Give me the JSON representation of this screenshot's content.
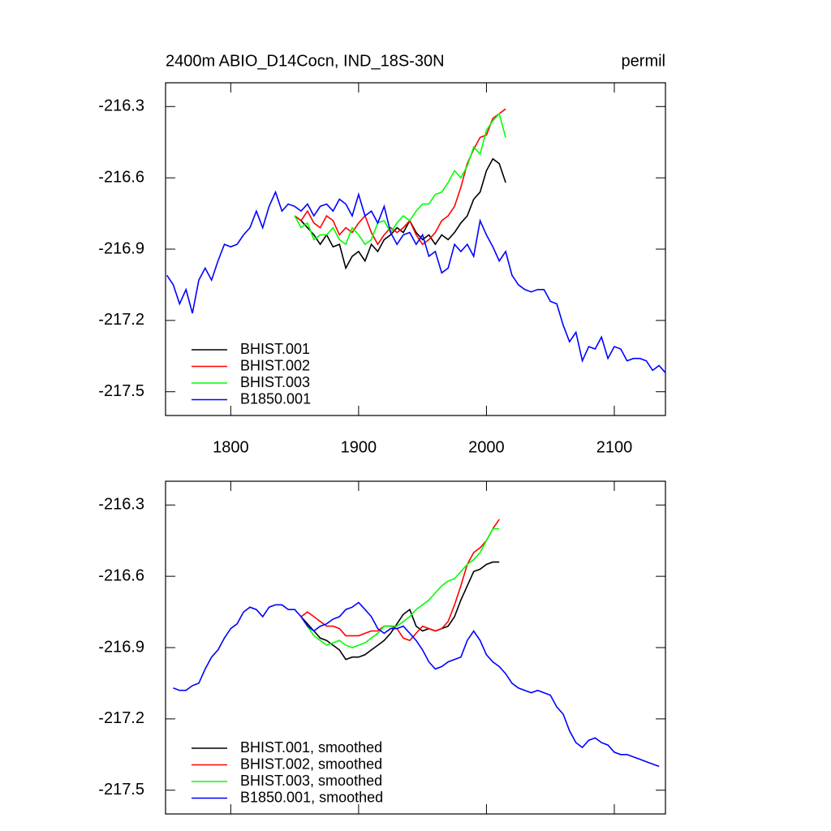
{
  "chart_data": [
    {
      "type": "line",
      "title": "2400m ABIO_D14Cocn, IND_18S-30N",
      "units": "permil",
      "xlim": [
        1749,
        2140
      ],
      "ylim": [
        -217.6,
        -216.2
      ],
      "xticks": [
        1800,
        1900,
        2000,
        2100
      ],
      "yticks": [
        -216.3,
        -216.6,
        -216.9,
        -217.2,
        -217.5
      ],
      "legend": "lower-left",
      "series": [
        {
          "name": "BHIST.001",
          "color": "#000000",
          "x": [
            1850,
            1855,
            1860,
            1865,
            1870,
            1875,
            1880,
            1885,
            1890,
            1895,
            1900,
            1905,
            1910,
            1915,
            1920,
            1925,
            1930,
            1935,
            1940,
            1945,
            1950,
            1955,
            1960,
            1965,
            1970,
            1975,
            1980,
            1985,
            1990,
            1995,
            2000,
            2005,
            2010,
            2015
          ],
          "values": [
            -216.76,
            -216.78,
            -216.81,
            -216.84,
            -216.88,
            -216.84,
            -216.89,
            -216.88,
            -216.98,
            -216.93,
            -216.91,
            -216.95,
            -216.88,
            -216.91,
            -216.86,
            -216.84,
            -216.81,
            -216.83,
            -216.78,
            -216.83,
            -216.86,
            -216.84,
            -216.88,
            -216.84,
            -216.86,
            -216.83,
            -216.79,
            -216.76,
            -216.69,
            -216.66,
            -216.57,
            -216.52,
            -216.54,
            -216.62
          ]
        },
        {
          "name": "BHIST.002",
          "color": "#ff0000",
          "x": [
            1850,
            1855,
            1860,
            1865,
            1870,
            1875,
            1880,
            1885,
            1890,
            1895,
            1900,
            1905,
            1910,
            1915,
            1920,
            1925,
            1930,
            1935,
            1940,
            1945,
            1950,
            1955,
            1960,
            1965,
            1970,
            1975,
            1980,
            1985,
            1990,
            1995,
            2000,
            2005,
            2010,
            2015
          ],
          "values": [
            -216.76,
            -216.78,
            -216.74,
            -216.79,
            -216.81,
            -216.76,
            -216.78,
            -216.84,
            -216.81,
            -216.83,
            -216.79,
            -216.76,
            -216.83,
            -216.88,
            -216.84,
            -216.81,
            -216.83,
            -216.81,
            -216.78,
            -216.84,
            -216.88,
            -216.86,
            -216.83,
            -216.78,
            -216.76,
            -216.72,
            -216.64,
            -216.54,
            -216.48,
            -216.43,
            -216.42,
            -216.35,
            -216.33,
            -216.31
          ]
        },
        {
          "name": "BHIST.003",
          "color": "#00ff00",
          "x": [
            1850,
            1855,
            1860,
            1865,
            1870,
            1875,
            1880,
            1885,
            1890,
            1895,
            1900,
            1905,
            1910,
            1915,
            1920,
            1925,
            1930,
            1935,
            1940,
            1945,
            1950,
            1955,
            1960,
            1965,
            1970,
            1975,
            1980,
            1985,
            1990,
            1995,
            2000,
            2005,
            2010,
            2015
          ],
          "values": [
            -216.76,
            -216.81,
            -216.79,
            -216.86,
            -216.84,
            -216.84,
            -216.81,
            -216.86,
            -216.88,
            -216.81,
            -216.84,
            -216.88,
            -216.86,
            -216.79,
            -216.78,
            -216.83,
            -216.79,
            -216.76,
            -216.78,
            -216.74,
            -216.71,
            -216.71,
            -216.67,
            -216.66,
            -216.62,
            -216.57,
            -216.6,
            -216.55,
            -216.47,
            -216.5,
            -216.4,
            -216.36,
            -216.33,
            -216.43
          ]
        },
        {
          "name": "B1850.001",
          "color": "#0000ff",
          "x": [
            1750,
            1755,
            1760,
            1765,
            1770,
            1775,
            1780,
            1785,
            1790,
            1795,
            1800,
            1805,
            1810,
            1815,
            1820,
            1825,
            1830,
            1835,
            1840,
            1845,
            1850,
            1855,
            1860,
            1865,
            1870,
            1875,
            1880,
            1885,
            1890,
            1895,
            1900,
            1905,
            1910,
            1915,
            1920,
            1925,
            1930,
            1935,
            1940,
            1945,
            1950,
            1955,
            1960,
            1965,
            1970,
            1975,
            1980,
            1985,
            1990,
            1995,
            2000,
            2005,
            2010,
            2015,
            2020,
            2025,
            2030,
            2035,
            2040,
            2045,
            2050,
            2055,
            2060,
            2065,
            2070,
            2075,
            2080,
            2085,
            2090,
            2095,
            2100,
            2105,
            2110,
            2115,
            2120,
            2125,
            2130,
            2135,
            2140
          ],
          "values": [
            -217.01,
            -217.05,
            -217.13,
            -217.07,
            -217.17,
            -217.03,
            -216.98,
            -217.03,
            -216.95,
            -216.88,
            -216.89,
            -216.88,
            -216.84,
            -216.81,
            -216.74,
            -216.81,
            -216.72,
            -216.66,
            -216.74,
            -216.71,
            -216.72,
            -216.74,
            -216.71,
            -216.76,
            -216.72,
            -216.71,
            -216.74,
            -216.69,
            -216.71,
            -216.76,
            -216.67,
            -216.76,
            -216.74,
            -216.79,
            -216.72,
            -216.83,
            -216.88,
            -216.84,
            -216.83,
            -216.88,
            -216.84,
            -216.93,
            -216.91,
            -217.0,
            -216.98,
            -216.88,
            -216.91,
            -216.88,
            -216.93,
            -216.78,
            -216.84,
            -216.89,
            -216.95,
            -216.91,
            -217.01,
            -217.05,
            -217.07,
            -217.08,
            -217.07,
            -217.07,
            -217.12,
            -217.13,
            -217.22,
            -217.29,
            -217.25,
            -217.37,
            -217.31,
            -217.32,
            -217.27,
            -217.36,
            -217.31,
            -217.32,
            -217.37,
            -217.36,
            -217.36,
            -217.37,
            -217.41,
            -217.39,
            -217.42
          ]
        }
      ]
    },
    {
      "type": "line",
      "xlim": [
        1749,
        2140
      ],
      "ylim": [
        -217.6,
        -216.2
      ],
      "yticks": [
        -216.3,
        -216.6,
        -216.9,
        -217.2,
        -217.5
      ],
      "legend": "lower-left",
      "series": [
        {
          "name": "BHIST.001, smoothed",
          "color": "#000000",
          "x": [
            1855,
            1860,
            1865,
            1870,
            1875,
            1880,
            1885,
            1890,
            1895,
            1900,
            1905,
            1910,
            1915,
            1920,
            1925,
            1930,
            1935,
            1940,
            1945,
            1950,
            1955,
            1960,
            1965,
            1970,
            1975,
            1980,
            1985,
            1990,
            1995,
            2000,
            2005,
            2010
          ],
          "values": [
            -216.77,
            -216.8,
            -216.83,
            -216.86,
            -216.87,
            -216.89,
            -216.91,
            -216.95,
            -216.94,
            -216.94,
            -216.93,
            -216.91,
            -216.89,
            -216.87,
            -216.84,
            -216.8,
            -216.76,
            -216.74,
            -216.81,
            -216.83,
            -216.82,
            -216.83,
            -216.82,
            -216.81,
            -216.77,
            -216.7,
            -216.64,
            -216.58,
            -216.57,
            -216.55,
            -216.54,
            -216.54
          ]
        },
        {
          "name": "BHIST.002, smoothed",
          "color": "#ff0000",
          "x": [
            1855,
            1860,
            1865,
            1870,
            1875,
            1880,
            1885,
            1890,
            1895,
            1900,
            1905,
            1910,
            1915,
            1920,
            1925,
            1930,
            1935,
            1940,
            1945,
            1950,
            1955,
            1960,
            1965,
            1970,
            1975,
            1980,
            1985,
            1990,
            1995,
            2000,
            2005,
            2010
          ],
          "values": [
            -216.77,
            -216.75,
            -216.77,
            -216.79,
            -216.81,
            -216.81,
            -216.82,
            -216.85,
            -216.85,
            -216.85,
            -216.84,
            -216.83,
            -216.83,
            -216.81,
            -216.81,
            -216.82,
            -216.86,
            -216.87,
            -216.84,
            -216.81,
            -216.82,
            -216.83,
            -216.82,
            -216.79,
            -216.72,
            -216.64,
            -216.55,
            -216.5,
            -216.48,
            -216.45,
            -216.4,
            -216.36
          ]
        },
        {
          "name": "BHIST.003, smoothed",
          "color": "#00ff00",
          "x": [
            1855,
            1860,
            1865,
            1870,
            1875,
            1880,
            1885,
            1890,
            1895,
            1900,
            1905,
            1910,
            1915,
            1920,
            1925,
            1930,
            1935,
            1940,
            1945,
            1950,
            1955,
            1960,
            1965,
            1970,
            1975,
            1980,
            1985,
            1990,
            1995,
            2000,
            2005,
            2010
          ],
          "values": [
            -216.77,
            -216.81,
            -216.85,
            -216.87,
            -216.89,
            -216.88,
            -216.87,
            -216.89,
            -216.9,
            -216.89,
            -216.88,
            -216.86,
            -216.84,
            -216.81,
            -216.81,
            -216.81,
            -216.79,
            -216.77,
            -216.74,
            -216.72,
            -216.7,
            -216.67,
            -216.64,
            -216.62,
            -216.61,
            -216.58,
            -216.55,
            -216.53,
            -216.5,
            -216.45,
            -216.4,
            -216.4
          ]
        },
        {
          "name": "B1850.001, smoothed",
          "color": "#0000ff",
          "x": [
            1755,
            1760,
            1765,
            1770,
            1775,
            1780,
            1785,
            1790,
            1795,
            1800,
            1805,
            1810,
            1815,
            1820,
            1825,
            1830,
            1835,
            1840,
            1845,
            1850,
            1855,
            1860,
            1865,
            1870,
            1875,
            1880,
            1885,
            1890,
            1895,
            1900,
            1905,
            1910,
            1915,
            1920,
            1925,
            1930,
            1935,
            1940,
            1945,
            1950,
            1955,
            1960,
            1965,
            1970,
            1975,
            1980,
            1985,
            1990,
            1995,
            2000,
            2005,
            2010,
            2015,
            2020,
            2025,
            2030,
            2035,
            2040,
            2045,
            2050,
            2055,
            2060,
            2065,
            2070,
            2075,
            2080,
            2085,
            2090,
            2095,
            2100,
            2105,
            2110,
            2115,
            2120,
            2125,
            2130,
            2135
          ],
          "values": [
            -217.07,
            -217.08,
            -217.08,
            -217.06,
            -217.05,
            -216.99,
            -216.94,
            -216.91,
            -216.86,
            -216.82,
            -216.8,
            -216.75,
            -216.73,
            -216.74,
            -216.77,
            -216.73,
            -216.72,
            -216.72,
            -216.74,
            -216.74,
            -216.77,
            -216.81,
            -216.83,
            -216.81,
            -216.8,
            -216.78,
            -216.77,
            -216.74,
            -216.73,
            -216.71,
            -216.74,
            -216.77,
            -216.82,
            -216.84,
            -216.82,
            -216.82,
            -216.81,
            -216.84,
            -216.87,
            -216.91,
            -216.96,
            -216.99,
            -216.98,
            -216.96,
            -216.95,
            -216.94,
            -216.87,
            -216.83,
            -216.87,
            -216.93,
            -216.96,
            -216.98,
            -217.01,
            -217.05,
            -217.07,
            -217.08,
            -217.09,
            -217.08,
            -217.09,
            -217.1,
            -217.15,
            -217.18,
            -217.25,
            -217.3,
            -217.32,
            -217.29,
            -217.28,
            -217.3,
            -217.31,
            -217.34,
            -217.35,
            -217.35,
            -217.36,
            -217.37,
            -217.38,
            -217.39,
            -217.4
          ]
        }
      ]
    }
  ]
}
